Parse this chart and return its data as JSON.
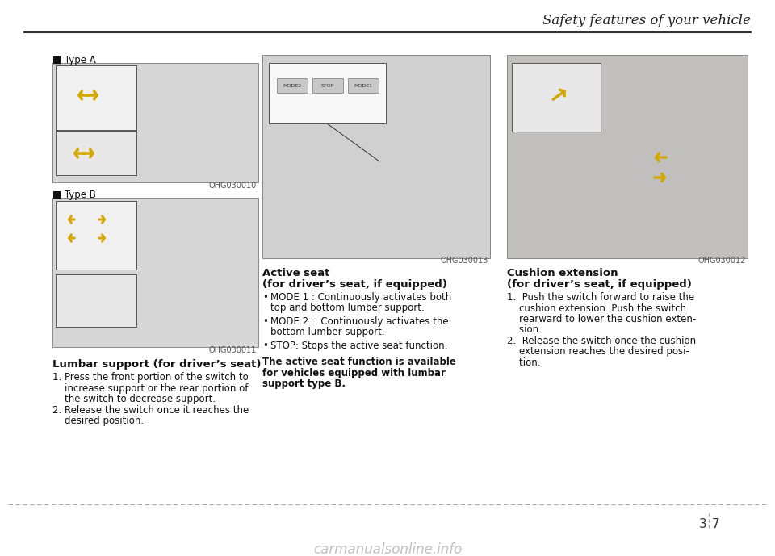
{
  "title": "Safety features of your vehicle",
  "title_fontsize": 12,
  "title_color": "#222222",
  "background_color": "#ffffff",
  "header_line_color": "#333333",
  "dashed_line_color": "#aaaaaa",
  "section1_label1": "■ Type A",
  "section1_label2": "■ Type B",
  "section1_img_code1": "OHG030010",
  "section1_img_code2": "OHG030011",
  "section1_title": "Lumbar support (for driver’s seat)",
  "section1_text_lines": [
    "1. Press the front portion of the switch to",
    "    increase support or the rear portion of",
    "    the switch to decrease support.",
    "2. Release the switch once it reaches the",
    "    desired position."
  ],
  "section2_title1": "Active seat",
  "section2_title2": "(for driver’s seat, if equipped)",
  "section2_img_code": "OHG030013",
  "section2_bullet1_lines": [
    "MODE 1 : Continuously activates both",
    "top and bottom lumber support."
  ],
  "section2_bullet2_lines": [
    "MODE 2  : Continuously activates the",
    "bottom lumber support."
  ],
  "section2_bullet3": "STOP: Stops the active seat function.",
  "section2_bold_lines": [
    "The active seat function is available",
    "for vehicles equipped with lumbar",
    "support type B."
  ],
  "section3_title1": "Cushion extension",
  "section3_title2": "(for driver’s seat, if equipped)",
  "section3_img_code": "OHG030012",
  "section3_text_lines": [
    "1.  Push the switch forward to raise the",
    "    cushion extension. Push the switch",
    "    rearward to lower the cushion exten-",
    "    sion.",
    "2.  Release the switch once the cushion",
    "    extension reaches the desired posi-",
    "    tion."
  ],
  "watermark_text": "carmanualsonline.info",
  "watermark_color": "#c0c0c0",
  "img_bg_light": "#e8e8e8",
  "img_bg_dark": "#b0b0b0",
  "img_border": "#999999",
  "font_body": 9,
  "font_small": 7.5,
  "font_code": 7
}
